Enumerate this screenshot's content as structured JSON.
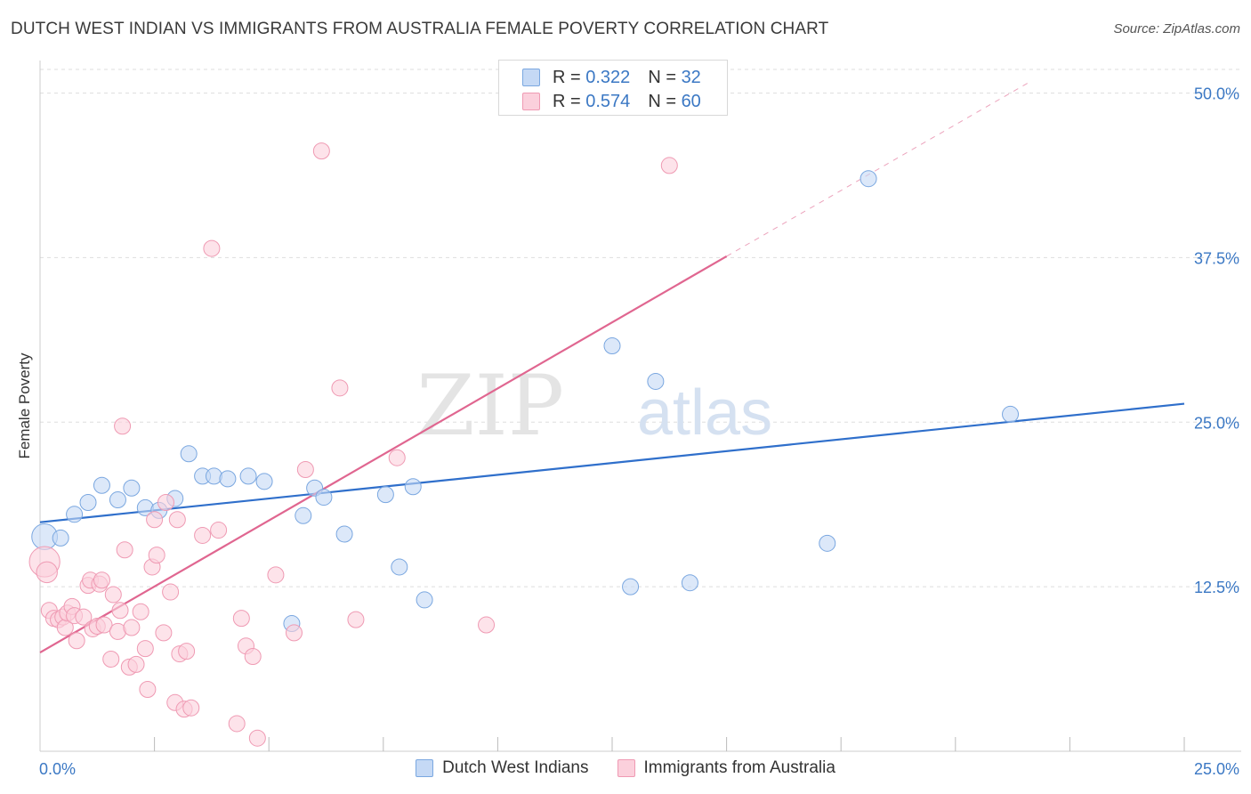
{
  "header": {
    "title": "DUTCH WEST INDIAN VS IMMIGRANTS FROM AUSTRALIA FEMALE POVERTY CORRELATION CHART",
    "source": "Source: ZipAtlas.com"
  },
  "watermark": {
    "zip": "ZIP",
    "atlas": "atlas"
  },
  "legend_top": {
    "rows": [
      {
        "r_label": "R =",
        "r_value": "0.322",
        "n_label": "N =",
        "n_value": "32"
      },
      {
        "r_label": "R =",
        "r_value": "0.574",
        "n_label": "N =",
        "n_value": "60"
      }
    ]
  },
  "colors": {
    "blue_fill": "#c5d9f5",
    "blue_stroke": "#7aa7e0",
    "blue_line": "#2f6fcb",
    "pink_fill": "#fbd0dc",
    "pink_stroke": "#ef9ab3",
    "pink_line": "#e06690",
    "tick_label": "#3b78c4",
    "grid": "#dddddd"
  },
  "chart_data": {
    "type": "scatter",
    "title": "DUTCH WEST INDIAN VS IMMIGRANTS FROM AUSTRALIA FEMALE POVERTY CORRELATION CHART",
    "xlabel": "",
    "ylabel": "Female Poverty",
    "xlim": [
      0,
      25
    ],
    "ylim": [
      0,
      52
    ],
    "x_tick_labels": [
      "0.0%",
      "25.0%"
    ],
    "y_ticks": [
      12.5,
      25.0,
      37.5,
      50.0
    ],
    "y_tick_labels": [
      "12.5%",
      "25.0%",
      "37.5%",
      "50.0%"
    ],
    "grid": true,
    "legend_position": "bottom-center",
    "series": [
      {
        "name": "Dutch West Indians",
        "color": "blue",
        "R": 0.322,
        "N": 32,
        "trend": {
          "x": [
            0,
            25
          ],
          "y": [
            17.4,
            26.4
          ],
          "dashed_from": null
        },
        "points": [
          [
            0.1,
            16.3,
            1.6
          ],
          [
            0.45,
            16.2,
            1.0
          ],
          [
            0.75,
            18.0,
            1.0
          ],
          [
            1.05,
            18.9,
            1.0
          ],
          [
            1.35,
            20.2,
            1.0
          ],
          [
            1.7,
            19.1,
            1.0
          ],
          [
            2.0,
            20.0,
            1.0
          ],
          [
            2.3,
            18.5,
            1.0
          ],
          [
            2.6,
            18.3,
            1.0
          ],
          [
            2.95,
            19.2,
            1.0
          ],
          [
            3.25,
            22.6,
            1.0
          ],
          [
            3.55,
            20.9,
            1.0
          ],
          [
            3.8,
            20.9,
            1.0
          ],
          [
            4.1,
            20.7,
            1.0
          ],
          [
            4.55,
            20.9,
            1.0
          ],
          [
            4.9,
            20.5,
            1.0
          ],
          [
            5.5,
            9.7,
            1.0
          ],
          [
            5.75,
            17.9,
            1.0
          ],
          [
            6.0,
            20.0,
            1.0
          ],
          [
            6.2,
            19.3,
            1.0
          ],
          [
            6.65,
            16.5,
            1.0
          ],
          [
            7.55,
            19.5,
            1.0
          ],
          [
            7.85,
            14.0,
            1.0
          ],
          [
            8.15,
            20.1,
            1.0
          ],
          [
            8.4,
            11.5,
            1.0
          ],
          [
            12.5,
            30.8,
            1.0
          ],
          [
            12.9,
            12.5,
            1.0
          ],
          [
            13.45,
            28.1,
            1.0
          ],
          [
            14.2,
            12.8,
            1.0
          ],
          [
            17.2,
            15.8,
            1.0
          ],
          [
            18.1,
            43.5,
            1.0
          ],
          [
            21.2,
            25.6,
            1.0
          ]
        ]
      },
      {
        "name": "Immigrants from Australia",
        "color": "pink",
        "R": 0.574,
        "N": 60,
        "trend": {
          "x": [
            0,
            15
          ],
          "y": [
            7.5,
            37.6
          ],
          "dashed_to": [
            21.6,
            50.8
          ]
        },
        "points": [
          [
            0.1,
            14.4,
            1.9
          ],
          [
            0.15,
            13.6,
            1.3
          ],
          [
            0.2,
            10.7,
            1.0
          ],
          [
            0.3,
            10.1,
            1.0
          ],
          [
            0.4,
            10.0,
            1.0
          ],
          [
            0.5,
            10.2,
            1.0
          ],
          [
            0.55,
            9.4,
            1.0
          ],
          [
            0.6,
            10.5,
            1.0
          ],
          [
            0.7,
            11.0,
            1.0
          ],
          [
            0.75,
            10.3,
            1.0
          ],
          [
            0.8,
            8.4,
            1.0
          ],
          [
            0.95,
            10.2,
            1.0
          ],
          [
            1.05,
            12.6,
            1.0
          ],
          [
            1.1,
            13.0,
            1.0
          ],
          [
            1.15,
            9.3,
            1.0
          ],
          [
            1.25,
            9.5,
            1.0
          ],
          [
            1.3,
            12.7,
            1.0
          ],
          [
            1.35,
            13.0,
            1.0
          ],
          [
            1.4,
            9.6,
            1.0
          ],
          [
            1.55,
            7.0,
            1.0
          ],
          [
            1.6,
            11.9,
            1.0
          ],
          [
            1.7,
            9.1,
            1.0
          ],
          [
            1.75,
            10.7,
            1.0
          ],
          [
            1.8,
            24.7,
            1.0
          ],
          [
            1.85,
            15.3,
            1.0
          ],
          [
            1.95,
            6.4,
            1.0
          ],
          [
            2.0,
            9.4,
            1.0
          ],
          [
            2.1,
            6.6,
            1.0
          ],
          [
            2.2,
            10.6,
            1.0
          ],
          [
            2.3,
            7.8,
            1.0
          ],
          [
            2.35,
            4.7,
            1.0
          ],
          [
            2.45,
            14.0,
            1.0
          ],
          [
            2.5,
            17.6,
            1.0
          ],
          [
            2.55,
            14.9,
            1.0
          ],
          [
            2.7,
            9.0,
            1.0
          ],
          [
            2.75,
            18.9,
            1.0
          ],
          [
            2.85,
            12.1,
            1.0
          ],
          [
            2.95,
            3.7,
            1.0
          ],
          [
            3.0,
            17.6,
            1.0
          ],
          [
            3.05,
            7.4,
            1.0
          ],
          [
            3.15,
            3.2,
            1.0
          ],
          [
            3.2,
            7.6,
            1.0
          ],
          [
            3.3,
            3.3,
            1.0
          ],
          [
            3.55,
            16.4,
            1.0
          ],
          [
            3.75,
            38.2,
            1.0
          ],
          [
            3.9,
            16.8,
            1.0
          ],
          [
            4.3,
            2.1,
            1.0
          ],
          [
            4.4,
            10.1,
            1.0
          ],
          [
            4.5,
            8.0,
            1.0
          ],
          [
            4.65,
            7.2,
            1.0
          ],
          [
            4.75,
            1.0,
            1.0
          ],
          [
            5.15,
            13.4,
            1.0
          ],
          [
            5.55,
            9.0,
            1.0
          ],
          [
            5.8,
            21.4,
            1.0
          ],
          [
            6.15,
            45.6,
            1.0
          ],
          [
            6.55,
            27.6,
            1.0
          ],
          [
            6.9,
            10.0,
            1.0
          ],
          [
            7.8,
            22.3,
            1.0
          ],
          [
            9.75,
            9.6,
            1.0
          ],
          [
            13.75,
            44.5,
            1.0
          ]
        ]
      }
    ]
  }
}
